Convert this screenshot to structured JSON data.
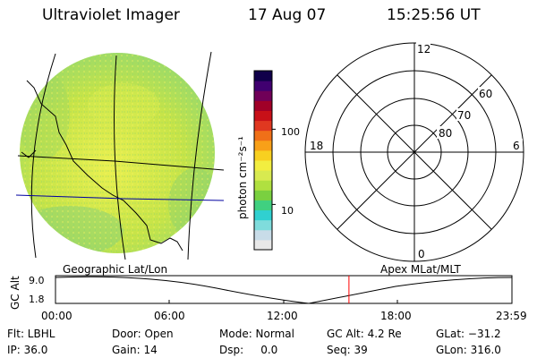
{
  "header": {
    "instrument": "Ultraviolet Imager",
    "date": "17 Aug 07",
    "time": "15:25:56 UT"
  },
  "colorbar": {
    "unit_label": "photon cm⁻²s⁻¹",
    "scale": "log",
    "tick_labels": [
      "100",
      "10"
    ],
    "tick_values": [
      100,
      10
    ],
    "range": [
      2.5,
      600
    ],
    "colors": [
      "#e8e8e8",
      "#c8dce8",
      "#7fdcdc",
      "#30d0d0",
      "#40d080",
      "#7ad040",
      "#b0e040",
      "#d8ea50",
      "#f2ee40",
      "#f8d020",
      "#f8a018",
      "#f07018",
      "#e03820",
      "#c81018",
      "#a00028",
      "#700058",
      "#400070",
      "#10004a"
    ]
  },
  "polar_grid": {
    "clock_labels": [
      "12",
      "18",
      "6",
      "0"
    ],
    "lat_labels": [
      "60",
      "70",
      "80"
    ]
  },
  "timeline": {
    "left_title": "Geographic Lat/Lon",
    "right_title": "Apex MLat/MLT",
    "axis_label": "GC Alt",
    "y_ticks": [
      "9.0",
      "1.8"
    ],
    "time_ticks": [
      "00:00",
      "06:00",
      "12:00",
      "18:00",
      "23:59"
    ],
    "current_time_hours": 15.43
  },
  "status": {
    "rows": [
      [
        "Flt: LBHL",
        "Door: Open",
        "Mode: Normal",
        "GC Alt: 4.2 Re",
        "GLat: −31.2"
      ],
      [
        "IP: 36.0",
        "Gain: 14",
        "Dsp:     0.0",
        "Seq: 39",
        "GLon: 316.0"
      ]
    ]
  },
  "colors": {
    "cursor": "#ff0000",
    "lat_lon_lines": "#000080",
    "coast": "#000000"
  }
}
